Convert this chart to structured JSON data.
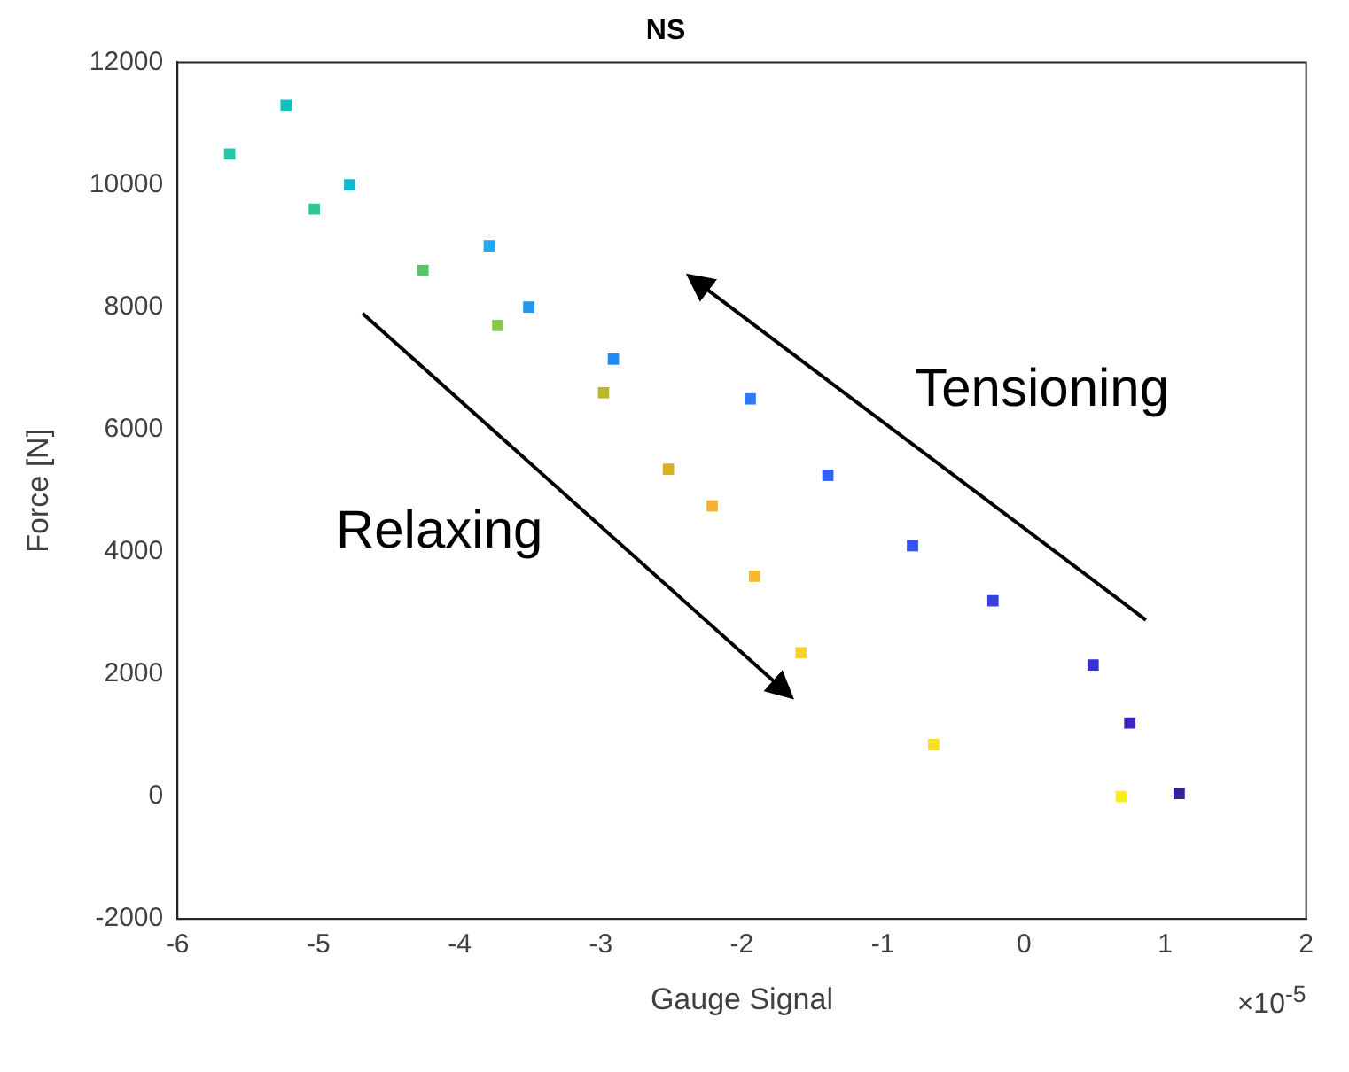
{
  "chart_data": {
    "type": "scatter",
    "title": "NS",
    "xlabel": "Gauge Signal",
    "ylabel": "Force [N]",
    "x": [
      -5.63,
      -5.23,
      -5.03,
      -4.78,
      -4.26,
      -3.79,
      -3.73,
      -3.51,
      -2.98,
      -2.91,
      -2.52,
      -2.21,
      -1.94,
      -1.91,
      -1.58,
      -1.39,
      -0.79,
      -0.64,
      -0.22,
      0.49,
      0.69,
      0.75,
      1.1
    ],
    "values": [
      10500,
      11300,
      9600,
      10000,
      8600,
      9000,
      7700,
      8000,
      6600,
      7150,
      5350,
      4750,
      6500,
      3600,
      2350,
      5250,
      4100,
      850,
      3200,
      2150,
      0,
      1200,
      50
    ],
    "colors": [
      "#20c8a8",
      "#10c0c0",
      "#30c890",
      "#10b8d0",
      "#50c868",
      "#20a8f0",
      "#88c848",
      "#2098f0",
      "#b8b828",
      "#2088f8",
      "#d8b020",
      "#f8b030",
      "#3078f8",
      "#f8b830",
      "#f8d028",
      "#3060f8",
      "#3550f0",
      "#f8e020",
      "#3840e0",
      "#3830d0",
      "#f8f010",
      "#3828c0",
      "#38209a"
    ],
    "marker": "square",
    "grid": false,
    "legend": false,
    "xlim": [
      -6,
      2
    ],
    "xticks": [
      -6,
      -5,
      -4,
      -3,
      -2,
      -1,
      0,
      1,
      2
    ],
    "ylim": [
      -2000,
      12000
    ],
    "yticks": [
      -2000,
      0,
      2000,
      4000,
      6000,
      8000,
      10000,
      12000
    ],
    "annotations": [
      "Relaxing",
      "Tensioning",
      "×10$^{-5}$"
    ]
  }
}
